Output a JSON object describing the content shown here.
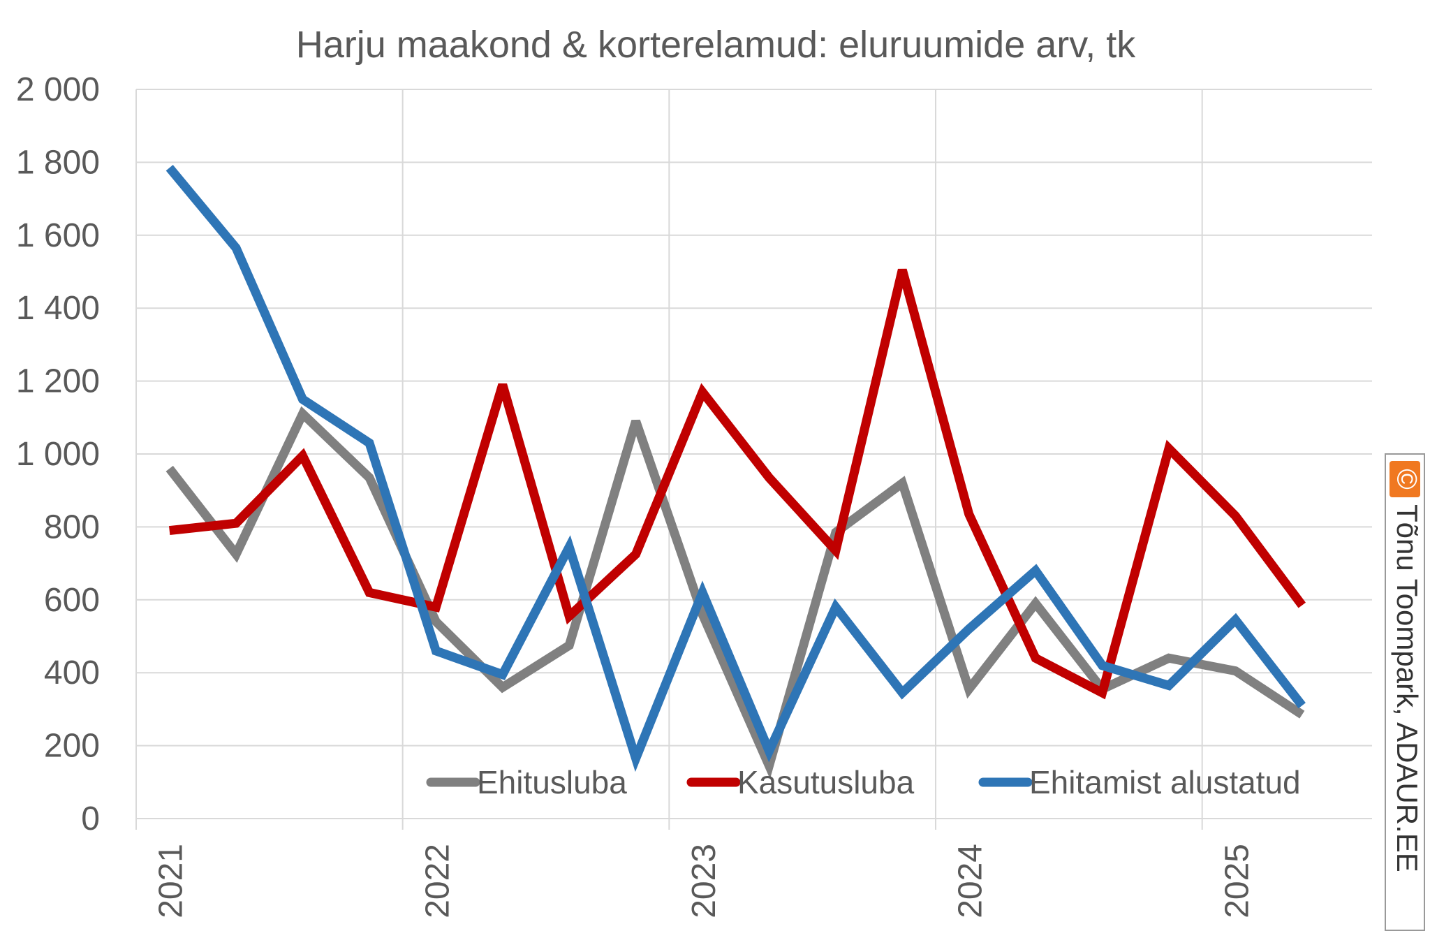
{
  "chart_data": {
    "type": "line",
    "title": "Harju maakond & korterelamud: eluruumide arv, tk",
    "xlabel": "",
    "ylabel": "",
    "ylim": [
      0,
      2000
    ],
    "y_ticks": [
      "0",
      "200",
      "400",
      "600",
      "800",
      "1 000",
      "1 200",
      "1 400",
      "1 600",
      "1 800",
      "2 000"
    ],
    "y_tick_values": [
      0,
      200,
      400,
      600,
      800,
      1000,
      1200,
      1400,
      1600,
      1800,
      2000
    ],
    "x_ticks": [
      "2021",
      "2022",
      "2023",
      "2024",
      "2025"
    ],
    "x": [
      "2021 Q1",
      "2021 Q2",
      "2021 Q3",
      "2021 Q4",
      "2022 Q1",
      "2022 Q2",
      "2022 Q3",
      "2022 Q4",
      "2023 Q1",
      "2023 Q2",
      "2023 Q3",
      "2023 Q4",
      "2024 Q1",
      "2024 Q2",
      "2024 Q3",
      "2024 Q4",
      "2025 Q1",
      "2025 Q2"
    ],
    "grid": true,
    "legend_position": "bottom-right inside plot",
    "series": [
      {
        "name": "Ehitusluba",
        "color": "#808080",
        "values": [
          960,
          725,
          1110,
          935,
          540,
          360,
          475,
          1090,
          560,
          145,
          785,
          920,
          355,
          590,
          355,
          440,
          405,
          285
        ]
      },
      {
        "name": "Kasutusluba",
        "color": "#c00000",
        "values": [
          790,
          810,
          995,
          620,
          580,
          1190,
          555,
          725,
          1170,
          935,
          735,
          1505,
          835,
          440,
          345,
          1015,
          830,
          585
        ]
      },
      {
        "name": "Ehitamist alustatud",
        "color": "#2e75b6",
        "values": [
          1785,
          1565,
          1150,
          1030,
          460,
          395,
          745,
          165,
          620,
          185,
          580,
          345,
          520,
          680,
          420,
          365,
          545,
          310
        ]
      }
    ]
  },
  "credit": {
    "icon": "copyright-icon",
    "icon_glyph": "©",
    "icon_color": "#f07820",
    "text": "Tõnu Toompark, ADAUR.EE"
  }
}
